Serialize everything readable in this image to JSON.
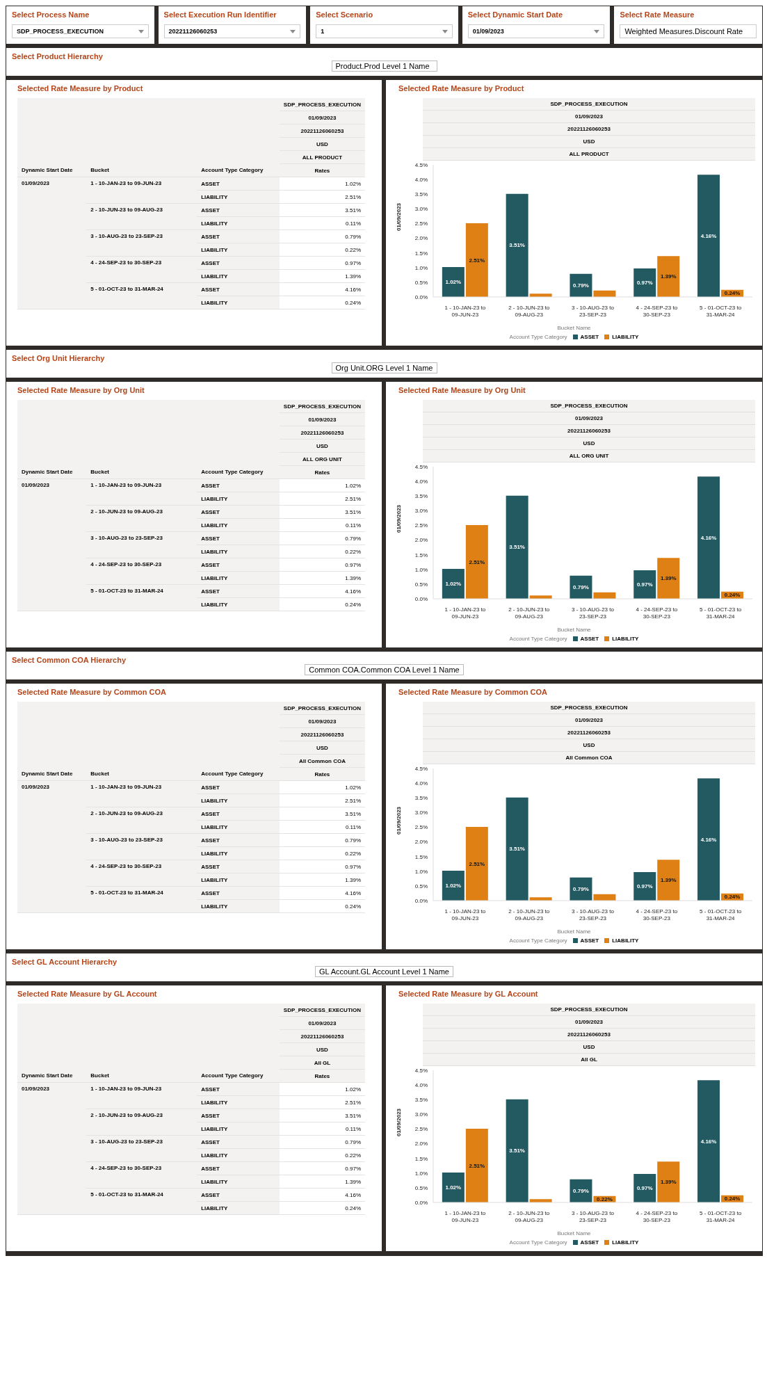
{
  "chart_data": [
    {
      "type": "other",
      "annotations": [
        "Select Process Name",
        "SDP_PROCESS_EXECUTION",
        "Select Execution Run Identifier",
        "20221126060253",
        "Select Scenario",
        "1",
        "Select Dynamic Start Date",
        "01/09/2023",
        "Select Rate Measure",
        "Weighted Measures.Discount Rate"
      ]
    },
    {
      "type": "other",
      "title": "Select Product Hierarchy",
      "annotations": [
        "Product.Prod Level 1 Name"
      ]
    },
    {
      "type": "other",
      "title": "Selected Rate Measure by Product",
      "annotations": [
        "SDP_PROCESS_EXECUTION",
        "01/09/2023",
        "20221126060253",
        "USD",
        "ALL PRODUCT",
        "Dynamic Start Date",
        "Bucket",
        "Account Type Category",
        "Rates",
        "01/09/2023",
        "1 - 10-JAN-23 to 09-JUN-23",
        "2 - 10-JUN-23 to 09-AUG-23",
        "3 - 10-AUG-23 to 23-SEP-23",
        "4 - 24-SEP-23 to 30-SEP-23",
        "5 - 01-OCT-23 to 31-MAR-24",
        "ASSET",
        "LIABILITY",
        "ASSET",
        "LIABILITY",
        "ASSET",
        "LIABILITY",
        "ASSET",
        "LIABILITY",
        "ASSET",
        "LIABILITY",
        "1.02%",
        "2.51%",
        "3.51%",
        "0.11%",
        "0.79%",
        "0.22%",
        "0.97%",
        "1.39%",
        "4.16%",
        "0.24%"
      ]
    },
    {
      "type": "bar",
      "title": "Selected Rate Measure by Product",
      "annotations": [
        "SDP_PROCESS_EXECUTION",
        "01/09/2023",
        "20221126060253",
        "USD",
        "ALL PRODUCT"
      ],
      "xlabel": "Bucket Name",
      "ylabel": "01/09/2023",
      "legend_title": "Account Type Category",
      "legend": "bottom",
      "categories": [
        "1 - 10-JAN-23 to 09-JUN-23",
        "2 - 10-JUN-23 to 09-AUG-23",
        "3 - 10-AUG-23 to 23-SEP-23",
        "4 - 24-SEP-23 to 30-SEP-23",
        "5 - 01-OCT-23 to 31-MAR-24"
      ],
      "ylim": [
        0,
        4.5
      ],
      "yticks": [
        {
          "value": 0,
          "label": "0.0%"
        },
        {
          "value": 0.5,
          "label": "0.5%"
        },
        {
          "value": 1,
          "label": "1.0%"
        },
        {
          "value": 1.5,
          "label": "1.5%"
        },
        {
          "value": 2,
          "label": "2.0%"
        },
        {
          "value": 2.5,
          "label": "2.5%"
        },
        {
          "value": 3,
          "label": "3.0%"
        },
        {
          "value": 3.5,
          "label": "3.5%"
        },
        {
          "value": 4,
          "label": "4.0%"
        },
        {
          "value": 4.5,
          "label": "4.5%"
        }
      ],
      "series": [
        {
          "name": "ASSET",
          "color": "#235a62",
          "values": [
            1.02,
            3.51,
            0.79,
            0.97,
            4.16
          ],
          "value_labels": [
            "1.02%",
            "3.51%",
            "0.79%",
            "0.97%",
            "4.16%"
          ]
        },
        {
          "name": "LIABILITY",
          "color": "#df8014",
          "values": [
            2.51,
            0.11,
            0.22,
            1.39,
            0.24
          ],
          "value_labels": [
            "2.51%",
            null,
            null,
            "1.39%",
            "0.24%"
          ]
        }
      ]
    },
    {
      "type": "other",
      "title": "Select Org Unit Hierarchy",
      "annotations": [
        "Org Unit.ORG Level 1 Name"
      ]
    },
    {
      "type": "other",
      "title": "Selected Rate Measure by Org Unit",
      "annotations": [
        "SDP_PROCESS_EXECUTION",
        "01/09/2023",
        "20221126060253",
        "USD",
        "ALL ORG UNIT",
        "Dynamic Start Date",
        "Bucket",
        "Account Type Category",
        "Rates",
        "01/09/2023",
        "1 - 10-JAN-23 to 09-JUN-23",
        "2 - 10-JUN-23 to 09-AUG-23",
        "3 - 10-AUG-23 to 23-SEP-23",
        "4 - 24-SEP-23 to 30-SEP-23",
        "5 - 01-OCT-23 to 31-MAR-24",
        "ASSET",
        "LIABILITY",
        "ASSET",
        "LIABILITY",
        "ASSET",
        "LIABILITY",
        "ASSET",
        "LIABILITY",
        "ASSET",
        "LIABILITY",
        "1.02%",
        "2.51%",
        "3.51%",
        "0.11%",
        "0.79%",
        "0.22%",
        "0.97%",
        "1.39%",
        "4.16%",
        "0.24%"
      ]
    },
    {
      "type": "bar",
      "title": "Selected Rate Measure by Org Unit",
      "annotations": [
        "SDP_PROCESS_EXECUTION",
        "01/09/2023",
        "20221126060253",
        "USD",
        "ALL ORG UNIT"
      ],
      "xlabel": "Bucket Name",
      "ylabel": "01/09/2023",
      "legend_title": "Account Type Category",
      "legend": "bottom",
      "categories": [
        "1 - 10-JAN-23 to 09-JUN-23",
        "2 - 10-JUN-23 to 09-AUG-23",
        "3 - 10-AUG-23 to 23-SEP-23",
        "4 - 24-SEP-23 to 30-SEP-23",
        "5 - 01-OCT-23 to 31-MAR-24"
      ],
      "ylim": [
        0,
        4.5
      ],
      "yticks": [
        {
          "value": 0,
          "label": "0.0%"
        },
        {
          "value": 0.5,
          "label": "0.5%"
        },
        {
          "value": 1,
          "label": "1.0%"
        },
        {
          "value": 1.5,
          "label": "1.5%"
        },
        {
          "value": 2,
          "label": "2.0%"
        },
        {
          "value": 2.5,
          "label": "2.5%"
        },
        {
          "value": 3,
          "label": "3.0%"
        },
        {
          "value": 3.5,
          "label": "3.5%"
        },
        {
          "value": 4,
          "label": "4.0%"
        },
        {
          "value": 4.5,
          "label": "4.5%"
        }
      ],
      "series": [
        {
          "name": "ASSET",
          "color": "#235a62",
          "values": [
            1.02,
            3.51,
            0.79,
            0.97,
            4.16
          ],
          "value_labels": [
            "1.02%",
            "3.51%",
            "0.79%",
            "0.97%",
            "4.16%"
          ]
        },
        {
          "name": "LIABILITY",
          "color": "#df8014",
          "values": [
            2.51,
            0.11,
            0.22,
            1.39,
            0.24
          ],
          "value_labels": [
            "2.51%",
            null,
            null,
            "1.39%",
            "0.24%"
          ]
        }
      ]
    },
    {
      "type": "other",
      "title": "Select Common COA Hierarchy",
      "annotations": [
        "Common COA.Common COA Level 1 Name"
      ]
    },
    {
      "type": "other",
      "title": "Selected Rate Measure by Common COA",
      "annotations": [
        "SDP_PROCESS_EXECUTION",
        "01/09/2023",
        "20221126060253",
        "USD",
        "All Common COA",
        "Dynamic Start Date",
        "Bucket",
        "Account Type Category",
        "Rates",
        "01/09/2023",
        "1 - 10-JAN-23 to 09-JUN-23",
        "2 - 10-JUN-23 to 09-AUG-23",
        "3 - 10-AUG-23 to 23-SEP-23",
        "4 - 24-SEP-23 to 30-SEP-23",
        "5 - 01-OCT-23 to 31-MAR-24",
        "ASSET",
        "LIABILITY",
        "ASSET",
        "LIABILITY",
        "ASSET",
        "LIABILITY",
        "ASSET",
        "LIABILITY",
        "ASSET",
        "LIABILITY",
        "1.02%",
        "2.51%",
        "3.51%",
        "0.11%",
        "0.79%",
        "0.22%",
        "0.97%",
        "1.39%",
        "4.16%",
        "0.24%"
      ]
    },
    {
      "type": "bar",
      "title": "Selected Rate Measure by Common COA",
      "annotations": [
        "SDP_PROCESS_EXECUTION",
        "01/09/2023",
        "20221126060253",
        "USD",
        "All Common COA"
      ],
      "xlabel": "Bucket Name",
      "ylabel": "01/09/2023",
      "legend_title": "Account Type Category",
      "legend": "bottom",
      "categories": [
        "1 - 10-JAN-23 to 09-JUN-23",
        "2 - 10-JUN-23 to 09-AUG-23",
        "3 - 10-AUG-23 to 23-SEP-23",
        "4 - 24-SEP-23 to 30-SEP-23",
        "5 - 01-OCT-23 to 31-MAR-24"
      ],
      "ylim": [
        0,
        4.5
      ],
      "yticks": [
        {
          "value": 0,
          "label": "0.0%"
        },
        {
          "value": 0.5,
          "label": "0.5%"
        },
        {
          "value": 1,
          "label": "1.0%"
        },
        {
          "value": 1.5,
          "label": "1.5%"
        },
        {
          "value": 2,
          "label": "2.0%"
        },
        {
          "value": 2.5,
          "label": "2.5%"
        },
        {
          "value": 3,
          "label": "3.0%"
        },
        {
          "value": 3.5,
          "label": "3.5%"
        },
        {
          "value": 4,
          "label": "4.0%"
        },
        {
          "value": 4.5,
          "label": "4.5%"
        }
      ],
      "series": [
        {
          "name": "ASSET",
          "color": "#235a62",
          "values": [
            1.02,
            3.51,
            0.79,
            0.97,
            4.16
          ],
          "value_labels": [
            "1.02%",
            "3.51%",
            "0.79%",
            "0.97%",
            "4.16%"
          ]
        },
        {
          "name": "LIABILITY",
          "color": "#df8014",
          "values": [
            2.51,
            0.11,
            0.22,
            1.39,
            0.24
          ],
          "value_labels": [
            "2.51%",
            null,
            null,
            "1.39%",
            "0.24%"
          ]
        }
      ]
    },
    {
      "type": "other",
      "title": "Select GL Account Hierarchy",
      "annotations": [
        "GL Account.GL Account Level 1 Name"
      ]
    },
    {
      "type": "other",
      "title": "Selected Rate Measure by GL Account",
      "annotations": [
        "SDP_PROCESS_EXECUTION",
        "01/09/2023",
        "20221126060253",
        "USD",
        "All GL",
        "Dynamic Start Date",
        "Bucket",
        "Account Type Category",
        "Rates",
        "01/09/2023",
        "1 - 10-JAN-23 to 09-JUN-23",
        "2 - 10-JUN-23 to 09-AUG-23",
        "3 - 10-AUG-23 to 23-SEP-23",
        "4 - 24-SEP-23 to 30-SEP-23",
        "5 - 01-OCT-23 to 31-MAR-24",
        "ASSET",
        "LIABILITY",
        "ASSET",
        "LIABILITY",
        "ASSET",
        "LIABILITY",
        "ASSET",
        "LIABILITY",
        "ASSET",
        "LIABILITY",
        "1.02%",
        "2.51%",
        "3.51%",
        "0.11%",
        "0.79%",
        "0.22%",
        "0.97%",
        "1.39%",
        "4.16%",
        "0.24%"
      ]
    },
    {
      "type": "bar",
      "title": "Selected Rate Measure by GL Account",
      "annotations": [
        "SDP_PROCESS_EXECUTION",
        "01/09/2023",
        "20221126060253",
        "USD",
        "All GL"
      ],
      "xlabel": "Bucket Name",
      "ylabel": "01/09/2023",
      "legend_title": "Account Type Category",
      "legend": "bottom",
      "categories": [
        "1 - 10-JAN-23 to 09-JUN-23",
        "2 - 10-JUN-23 to 09-AUG-23",
        "3 - 10-AUG-23 to 23-SEP-23",
        "4 - 24-SEP-23 to 30-SEP-23",
        "5 - 01-OCT-23 to 31-MAR-24"
      ],
      "ylim": [
        0,
        4.5
      ],
      "yticks": [
        {
          "value": 0,
          "label": "0.0%"
        },
        {
          "value": 0.5,
          "label": "0.5%"
        },
        {
          "value": 1,
          "label": "1.0%"
        },
        {
          "value": 1.5,
          "label": "1.5%"
        },
        {
          "value": 2,
          "label": "2.0%"
        },
        {
          "value": 2.5,
          "label": "2.5%"
        },
        {
          "value": 3,
          "label": "3.0%"
        },
        {
          "value": 3.5,
          "label": "3.5%"
        },
        {
          "value": 4,
          "label": "4.0%"
        },
        {
          "value": 4.5,
          "label": "4.5%"
        }
      ],
      "series": [
        {
          "name": "ASSET",
          "color": "#235a62",
          "values": [
            1.02,
            3.51,
            0.79,
            0.97,
            4.16
          ],
          "value_labels": [
            "1.02%",
            "3.51%",
            "0.79%",
            "0.97%",
            "4.16%"
          ]
        },
        {
          "name": "LIABILITY",
          "color": "#df8014",
          "values": [
            2.51,
            0.11,
            0.22,
            1.39,
            0.24
          ],
          "value_labels": [
            "2.51%",
            null,
            "0.22%",
            "1.39%",
            "0.24%"
          ]
        }
      ]
    }
  ]
}
